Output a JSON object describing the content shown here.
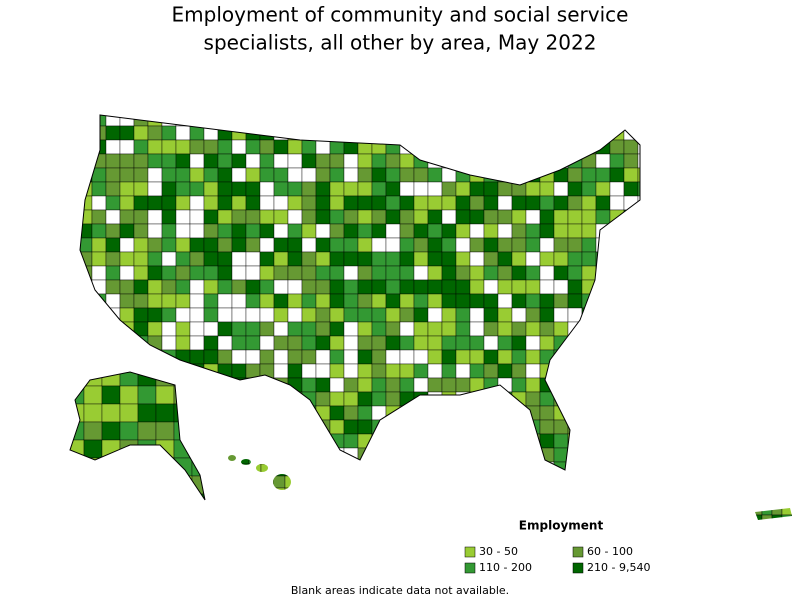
{
  "title_lines": [
    "Employment of community and social service",
    "specialists, all other by area, May 2022"
  ],
  "legend": {
    "title": "Employment",
    "items": [
      {
        "label": "30 - 50",
        "color": "#99cc33"
      },
      {
        "label": "60 - 100",
        "color": "#669933"
      },
      {
        "label": "110 - 200",
        "color": "#339933"
      },
      {
        "label": "210 - 9,540",
        "color": "#006600"
      }
    ]
  },
  "note": "Blank areas indicate data not available."
}
